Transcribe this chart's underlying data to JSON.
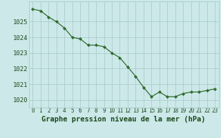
{
  "x": [
    0,
    1,
    2,
    3,
    4,
    5,
    6,
    7,
    8,
    9,
    10,
    11,
    12,
    13,
    14,
    15,
    16,
    17,
    18,
    19,
    20,
    21,
    22,
    23
  ],
  "y": [
    1025.8,
    1025.7,
    1025.3,
    1025.0,
    1024.6,
    1024.0,
    1023.9,
    1023.5,
    1023.5,
    1023.4,
    1023.0,
    1022.7,
    1022.1,
    1021.5,
    1020.8,
    1020.2,
    1020.5,
    1020.2,
    1020.2,
    1020.4,
    1020.5,
    1020.5,
    1020.6,
    1020.7
  ],
  "line_color": "#2d6a2d",
  "marker_color": "#2d6a2d",
  "bg_color": "#cce8e8",
  "grid_color": "#aacccc",
  "axis_label_color": "#1a4a1a",
  "ylabel_ticks": [
    1020,
    1021,
    1022,
    1023,
    1024,
    1025
  ],
  "ylim": [
    1019.5,
    1026.3
  ],
  "xlabel": "Graphe pression niveau de la mer (hPa)",
  "xlabel_fontsize": 7.5,
  "tick_fontsize": 6.5,
  "xtick_fontsize": 5.5
}
